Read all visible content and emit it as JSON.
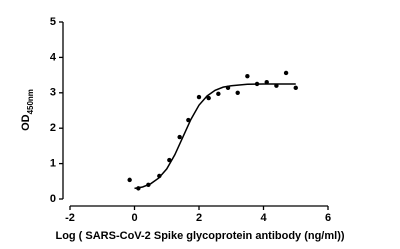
{
  "chart_data": {
    "type": "scatter",
    "x_label": "Log ( SARS-CoV-2 Spike glycoprotein antibody (ng/ml))",
    "y_label": "OD",
    "y_label_subscript": "450nm",
    "points": {
      "color": "#000000",
      "x": [
        -0.15,
        0.12,
        0.43,
        0.77,
        1.08,
        1.4,
        1.67,
        2.0,
        2.3,
        2.6,
        2.9,
        3.2,
        3.5,
        3.8,
        4.1,
        4.4,
        4.7,
        5.0
      ],
      "values": [
        0.54,
        0.3,
        0.4,
        0.65,
        1.1,
        1.75,
        2.23,
        2.88,
        2.85,
        2.97,
        3.14,
        3.0,
        3.47,
        3.25,
        3.3,
        3.2,
        3.56,
        3.14
      ]
    },
    "fit": {
      "color": "#000000",
      "x": [
        0,
        0.25,
        0.5,
        0.75,
        1.0,
        1.25,
        1.5,
        1.75,
        2.0,
        2.25,
        2.5,
        2.75,
        3.0,
        3.5,
        4.0,
        4.5,
        5.0
      ],
      "values": [
        0.3,
        0.34,
        0.43,
        0.59,
        0.85,
        1.25,
        1.75,
        2.25,
        2.65,
        2.91,
        3.07,
        3.16,
        3.2,
        3.24,
        3.25,
        3.25,
        3.25
      ]
    },
    "xlim": [
      -2,
      6
    ],
    "xticks": [
      -2,
      0,
      2,
      4,
      6
    ],
    "ylim": [
      0,
      5
    ],
    "yticks": [
      0,
      1,
      2,
      3,
      4,
      5
    ]
  }
}
